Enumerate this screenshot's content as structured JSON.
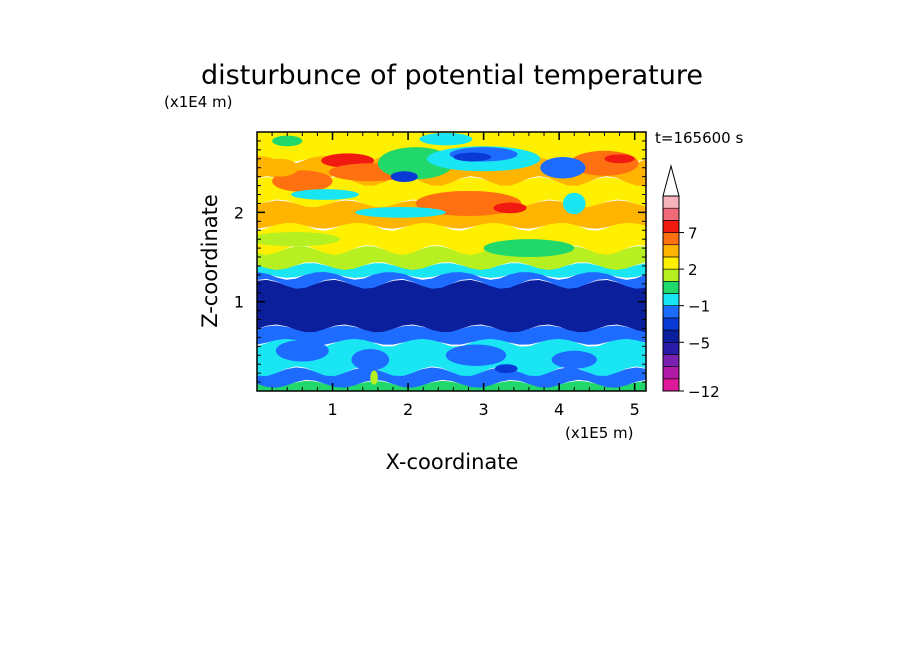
{
  "chart_data": {
    "type": "heatmap",
    "title": "disturbunce of potential temperature",
    "xlabel": "X-coordinate",
    "ylabel": "Z-coordinate",
    "x_unit": "(x1E5 m)",
    "y_unit": "(x1E4 m)",
    "time_label": "t=165600 s",
    "xlim": [
      0,
      5.15
    ],
    "ylim": [
      0,
      2.9
    ],
    "x_ticks": [
      "1",
      "2",
      "3",
      "4",
      "5"
    ],
    "y_ticks": [
      "1",
      "2"
    ],
    "colorbar": {
      "tick_labels": [
        "7",
        "2",
        "−1",
        "−5",
        "−12"
      ],
      "levels": [
        {
          "label": "-12",
          "color": "#e0189a"
        },
        {
          "label": "-11",
          "color": "#b11aa6"
        },
        {
          "label": "-9",
          "color": "#7a20b0"
        },
        {
          "label": "-7",
          "color": "#2a1aa8"
        },
        {
          "label": "-5",
          "color": "#0b1f9c"
        },
        {
          "label": "-4",
          "color": "#0a3ad6"
        },
        {
          "label": "-2",
          "color": "#1e6cff"
        },
        {
          "label": "-1",
          "color": "#19e6f2"
        },
        {
          "label": "0",
          "color": "#20d96a"
        },
        {
          "label": "1",
          "color": "#b6f020"
        },
        {
          "label": "2",
          "color": "#ffef00"
        },
        {
          "label": "3",
          "color": "#ffb400"
        },
        {
          "label": "5",
          "color": "#ff7010"
        },
        {
          "label": "7",
          "color": "#f01a10"
        },
        {
          "label": "8",
          "color": "#f06a7a"
        },
        {
          "label": "9",
          "color": "#f8b4bc"
        }
      ],
      "extend": "max"
    },
    "bands": [
      {
        "z_from": 0.0,
        "z_to": 0.08,
        "level": "0"
      },
      {
        "z_from": 0.08,
        "z_to": 0.22,
        "level": "-2"
      },
      {
        "z_from": 0.22,
        "z_to": 0.55,
        "level": "-1"
      },
      {
        "z_from": 0.55,
        "z_to": 0.7,
        "level": "-2"
      },
      {
        "z_from": 0.7,
        "z_to": 1.2,
        "level": "-5"
      },
      {
        "z_from": 1.2,
        "z_to": 1.3,
        "level": "-2"
      },
      {
        "z_from": 1.3,
        "z_to": 1.4,
        "level": "-1"
      },
      {
        "z_from": 1.4,
        "z_to": 1.58,
        "level": "1"
      },
      {
        "z_from": 1.58,
        "z_to": 1.85,
        "level": "2"
      },
      {
        "z_from": 1.85,
        "z_to": 2.1,
        "level": "3"
      },
      {
        "z_from": 2.1,
        "z_to": 2.35,
        "level": "2"
      },
      {
        "z_from": 2.35,
        "z_to": 2.6,
        "level": "3"
      },
      {
        "z_from": 2.6,
        "z_to": 2.9,
        "level": "2"
      }
    ],
    "features": [
      {
        "x": 1.2,
        "z": 2.58,
        "rx": 0.35,
        "rz": 0.08,
        "level": "7"
      },
      {
        "x": 0.6,
        "z": 2.35,
        "rx": 0.4,
        "rz": 0.12,
        "level": "5"
      },
      {
        "x": 0.3,
        "z": 2.5,
        "rx": 0.25,
        "rz": 0.1,
        "level": "3"
      },
      {
        "x": 1.5,
        "z": 2.45,
        "rx": 0.55,
        "rz": 0.1,
        "level": "5"
      },
      {
        "x": 2.8,
        "z": 2.1,
        "rx": 0.7,
        "rz": 0.14,
        "level": "5"
      },
      {
        "x": 3.35,
        "z": 2.05,
        "rx": 0.22,
        "rz": 0.06,
        "level": "7"
      },
      {
        "x": 4.6,
        "z": 2.55,
        "rx": 0.45,
        "rz": 0.14,
        "level": "5"
      },
      {
        "x": 4.8,
        "z": 2.6,
        "rx": 0.2,
        "rz": 0.05,
        "level": "7"
      },
      {
        "x": 0.9,
        "z": 2.2,
        "rx": 0.45,
        "rz": 0.06,
        "level": "-1"
      },
      {
        "x": 1.9,
        "z": 2.0,
        "rx": 0.6,
        "rz": 0.06,
        "level": "-1"
      },
      {
        "x": 0.5,
        "z": 1.7,
        "rx": 0.6,
        "rz": 0.08,
        "level": "1"
      },
      {
        "x": 3.6,
        "z": 1.6,
        "rx": 0.6,
        "rz": 0.1,
        "level": "0"
      },
      {
        "x": 2.1,
        "z": 2.55,
        "rx": 0.5,
        "rz": 0.18,
        "level": "0"
      },
      {
        "x": 3.0,
        "z": 2.6,
        "rx": 0.75,
        "rz": 0.14,
        "level": "-1"
      },
      {
        "x": 3.0,
        "z": 2.65,
        "rx": 0.45,
        "rz": 0.08,
        "level": "-2"
      },
      {
        "x": 2.85,
        "z": 2.62,
        "rx": 0.25,
        "rz": 0.05,
        "level": "-4"
      },
      {
        "x": 1.95,
        "z": 2.4,
        "rx": 0.18,
        "rz": 0.06,
        "level": "-4"
      },
      {
        "x": 4.05,
        "z": 2.5,
        "rx": 0.3,
        "rz": 0.12,
        "level": "-2"
      },
      {
        "x": 4.2,
        "z": 2.1,
        "rx": 0.15,
        "rz": 0.12,
        "level": "-1"
      },
      {
        "x": 0.4,
        "z": 2.8,
        "rx": 0.2,
        "rz": 0.06,
        "level": "0"
      },
      {
        "x": 2.5,
        "z": 2.82,
        "rx": 0.35,
        "rz": 0.07,
        "level": "-1"
      },
      {
        "x": 0.6,
        "z": 0.45,
        "rx": 0.35,
        "rz": 0.12,
        "level": "-2"
      },
      {
        "x": 1.5,
        "z": 0.35,
        "rx": 0.25,
        "rz": 0.12,
        "level": "-2"
      },
      {
        "x": 2.9,
        "z": 0.4,
        "rx": 0.4,
        "rz": 0.12,
        "level": "-2"
      },
      {
        "x": 4.2,
        "z": 0.35,
        "rx": 0.3,
        "rz": 0.1,
        "level": "-2"
      },
      {
        "x": 3.3,
        "z": 0.25,
        "rx": 0.15,
        "rz": 0.05,
        "level": "-4"
      },
      {
        "x": 1.55,
        "z": 0.15,
        "rx": 0.05,
        "rz": 0.08,
        "level": "1"
      }
    ]
  }
}
